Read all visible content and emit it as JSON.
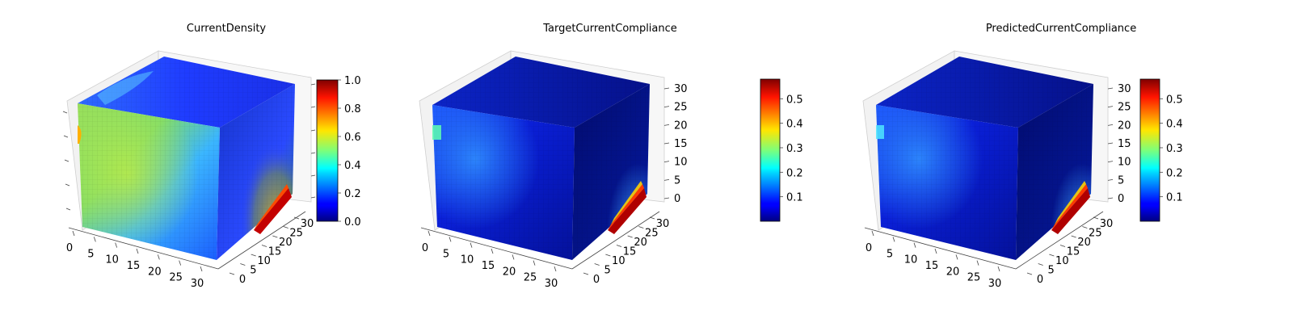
{
  "colormap": "jet",
  "chart_data": [
    {
      "type": "heatmap",
      "subtype": "3d-voxel-cube",
      "title": "CurrentDensity",
      "grid_size": [
        32,
        32,
        32
      ],
      "xticks": [
        "0",
        "5",
        "10",
        "15",
        "20",
        "25",
        "30"
      ],
      "yticks": [
        "0",
        "5",
        "10",
        "15",
        "20",
        "25",
        "30"
      ],
      "zticks": [],
      "colorbar": {
        "ticks": [
          "0.0",
          "0.2",
          "0.4",
          "0.6",
          "0.8",
          "1.0"
        ],
        "vmin": 0.0,
        "vmax": 1.0
      },
      "value_range": [
        0.0,
        1.0
      ],
      "hotspot_value": 1.0
    },
    {
      "type": "heatmap",
      "subtype": "3d-voxel-cube",
      "title": "TargetCurrentCompliance",
      "grid_size": [
        32,
        32,
        32
      ],
      "xticks": [
        "0",
        "5",
        "10",
        "15",
        "20",
        "25",
        "30"
      ],
      "yticks": [
        "0",
        "5",
        "10",
        "15",
        "20",
        "25",
        "30"
      ],
      "zticks": [
        "0",
        "5",
        "10",
        "15",
        "20",
        "25",
        "30"
      ],
      "colorbar": {
        "ticks": [
          "0.1",
          "0.2",
          "0.3",
          "0.4",
          "0.5"
        ],
        "vmin": 0.0,
        "vmax": 0.58
      },
      "value_range": [
        0.0,
        0.58
      ],
      "hotspot_value": 0.58
    },
    {
      "type": "heatmap",
      "subtype": "3d-voxel-cube",
      "title": "PredictedCurrentCompliance",
      "grid_size": [
        32,
        32,
        32
      ],
      "xticks": [
        "0",
        "5",
        "10",
        "15",
        "20",
        "25",
        "30"
      ],
      "yticks": [
        "0",
        "5",
        "10",
        "15",
        "20",
        "25",
        "30"
      ],
      "zticks": [
        "0",
        "5",
        "10",
        "15",
        "20",
        "25",
        "30"
      ],
      "colorbar": {
        "ticks": [
          "0.1",
          "0.2",
          "0.3",
          "0.4",
          "0.5"
        ],
        "vmin": 0.0,
        "vmax": 0.58
      },
      "value_range": [
        0.0,
        0.58
      ],
      "hotspot_value": 0.58
    }
  ]
}
